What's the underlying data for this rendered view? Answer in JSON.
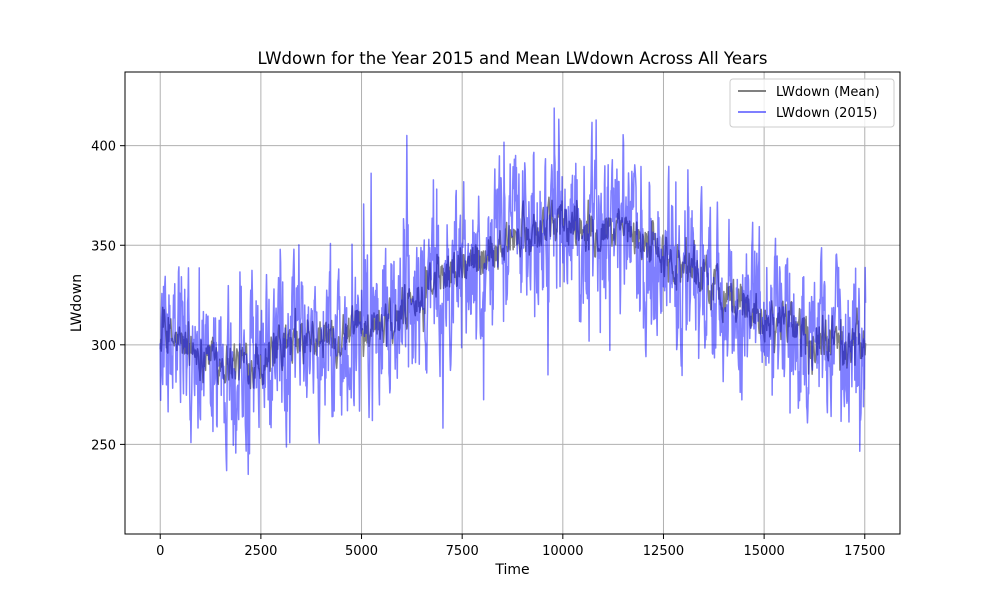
{
  "chart_data": {
    "type": "line",
    "title": "LWdown for the Year 2015 and Mean LWdown Across All Years",
    "xlabel": "Time",
    "ylabel": "LWdown",
    "xlim": [
      -875,
      18375
    ],
    "ylim": [
      205,
      437
    ],
    "xticks": [
      0,
      2500,
      5000,
      7500,
      10000,
      12500,
      15000,
      17500
    ],
    "xtick_labels": [
      "0",
      "2500",
      "5000",
      "7500",
      "10000",
      "12500",
      "15000",
      "17500"
    ],
    "yticks": [
      250,
      300,
      350,
      400
    ],
    "ytick_labels": [
      "250",
      "300",
      "350",
      "400"
    ],
    "grid": true,
    "legend_position": "top-right",
    "x_range": [
      0,
      17520
    ],
    "series": [
      {
        "name": "LWdown (Mean)",
        "color": "#808080",
        "alpha": 1.0,
        "x": [
          0,
          500,
          1000,
          1500,
          2000,
          2500,
          3000,
          3500,
          4000,
          4500,
          5000,
          5500,
          6000,
          6500,
          7000,
          7500,
          8000,
          8500,
          9000,
          9500,
          10000,
          10500,
          11000,
          11500,
          12000,
          12500,
          13000,
          13500,
          14000,
          14500,
          15000,
          15500,
          16000,
          16500,
          17000,
          17520
        ],
        "values": [
          305,
          300,
          296,
          293,
          291,
          292,
          297,
          300,
          302,
          304,
          308,
          312,
          318,
          325,
          333,
          340,
          346,
          351,
          356,
          359,
          361,
          360,
          358,
          355,
          351,
          346,
          340,
          333,
          326,
          320,
          315,
          311,
          307,
          303,
          300,
          302
        ],
        "noise_amplitude": 12
      },
      {
        "name": "LWdown (2015)",
        "color": "#0000ff",
        "alpha": 0.5,
        "x": [
          0,
          500,
          1000,
          1500,
          2000,
          2500,
          3000,
          3500,
          4000,
          4500,
          5000,
          5500,
          6000,
          6500,
          7000,
          7500,
          8000,
          8500,
          9000,
          9500,
          10000,
          10500,
          11000,
          11500,
          12000,
          12500,
          13000,
          13500,
          14000,
          14500,
          15000,
          15500,
          16000,
          16500,
          17000,
          17520
        ],
        "values": [
          300,
          298,
          290,
          285,
          288,
          292,
          298,
          300,
          300,
          302,
          306,
          312,
          318,
          324,
          332,
          340,
          345,
          352,
          358,
          360,
          362,
          360,
          358,
          354,
          350,
          344,
          338,
          332,
          324,
          318,
          312,
          308,
          304,
          300,
          298,
          300
        ],
        "noise_amplitude": 42,
        "min": 215,
        "max": 429
      }
    ]
  }
}
